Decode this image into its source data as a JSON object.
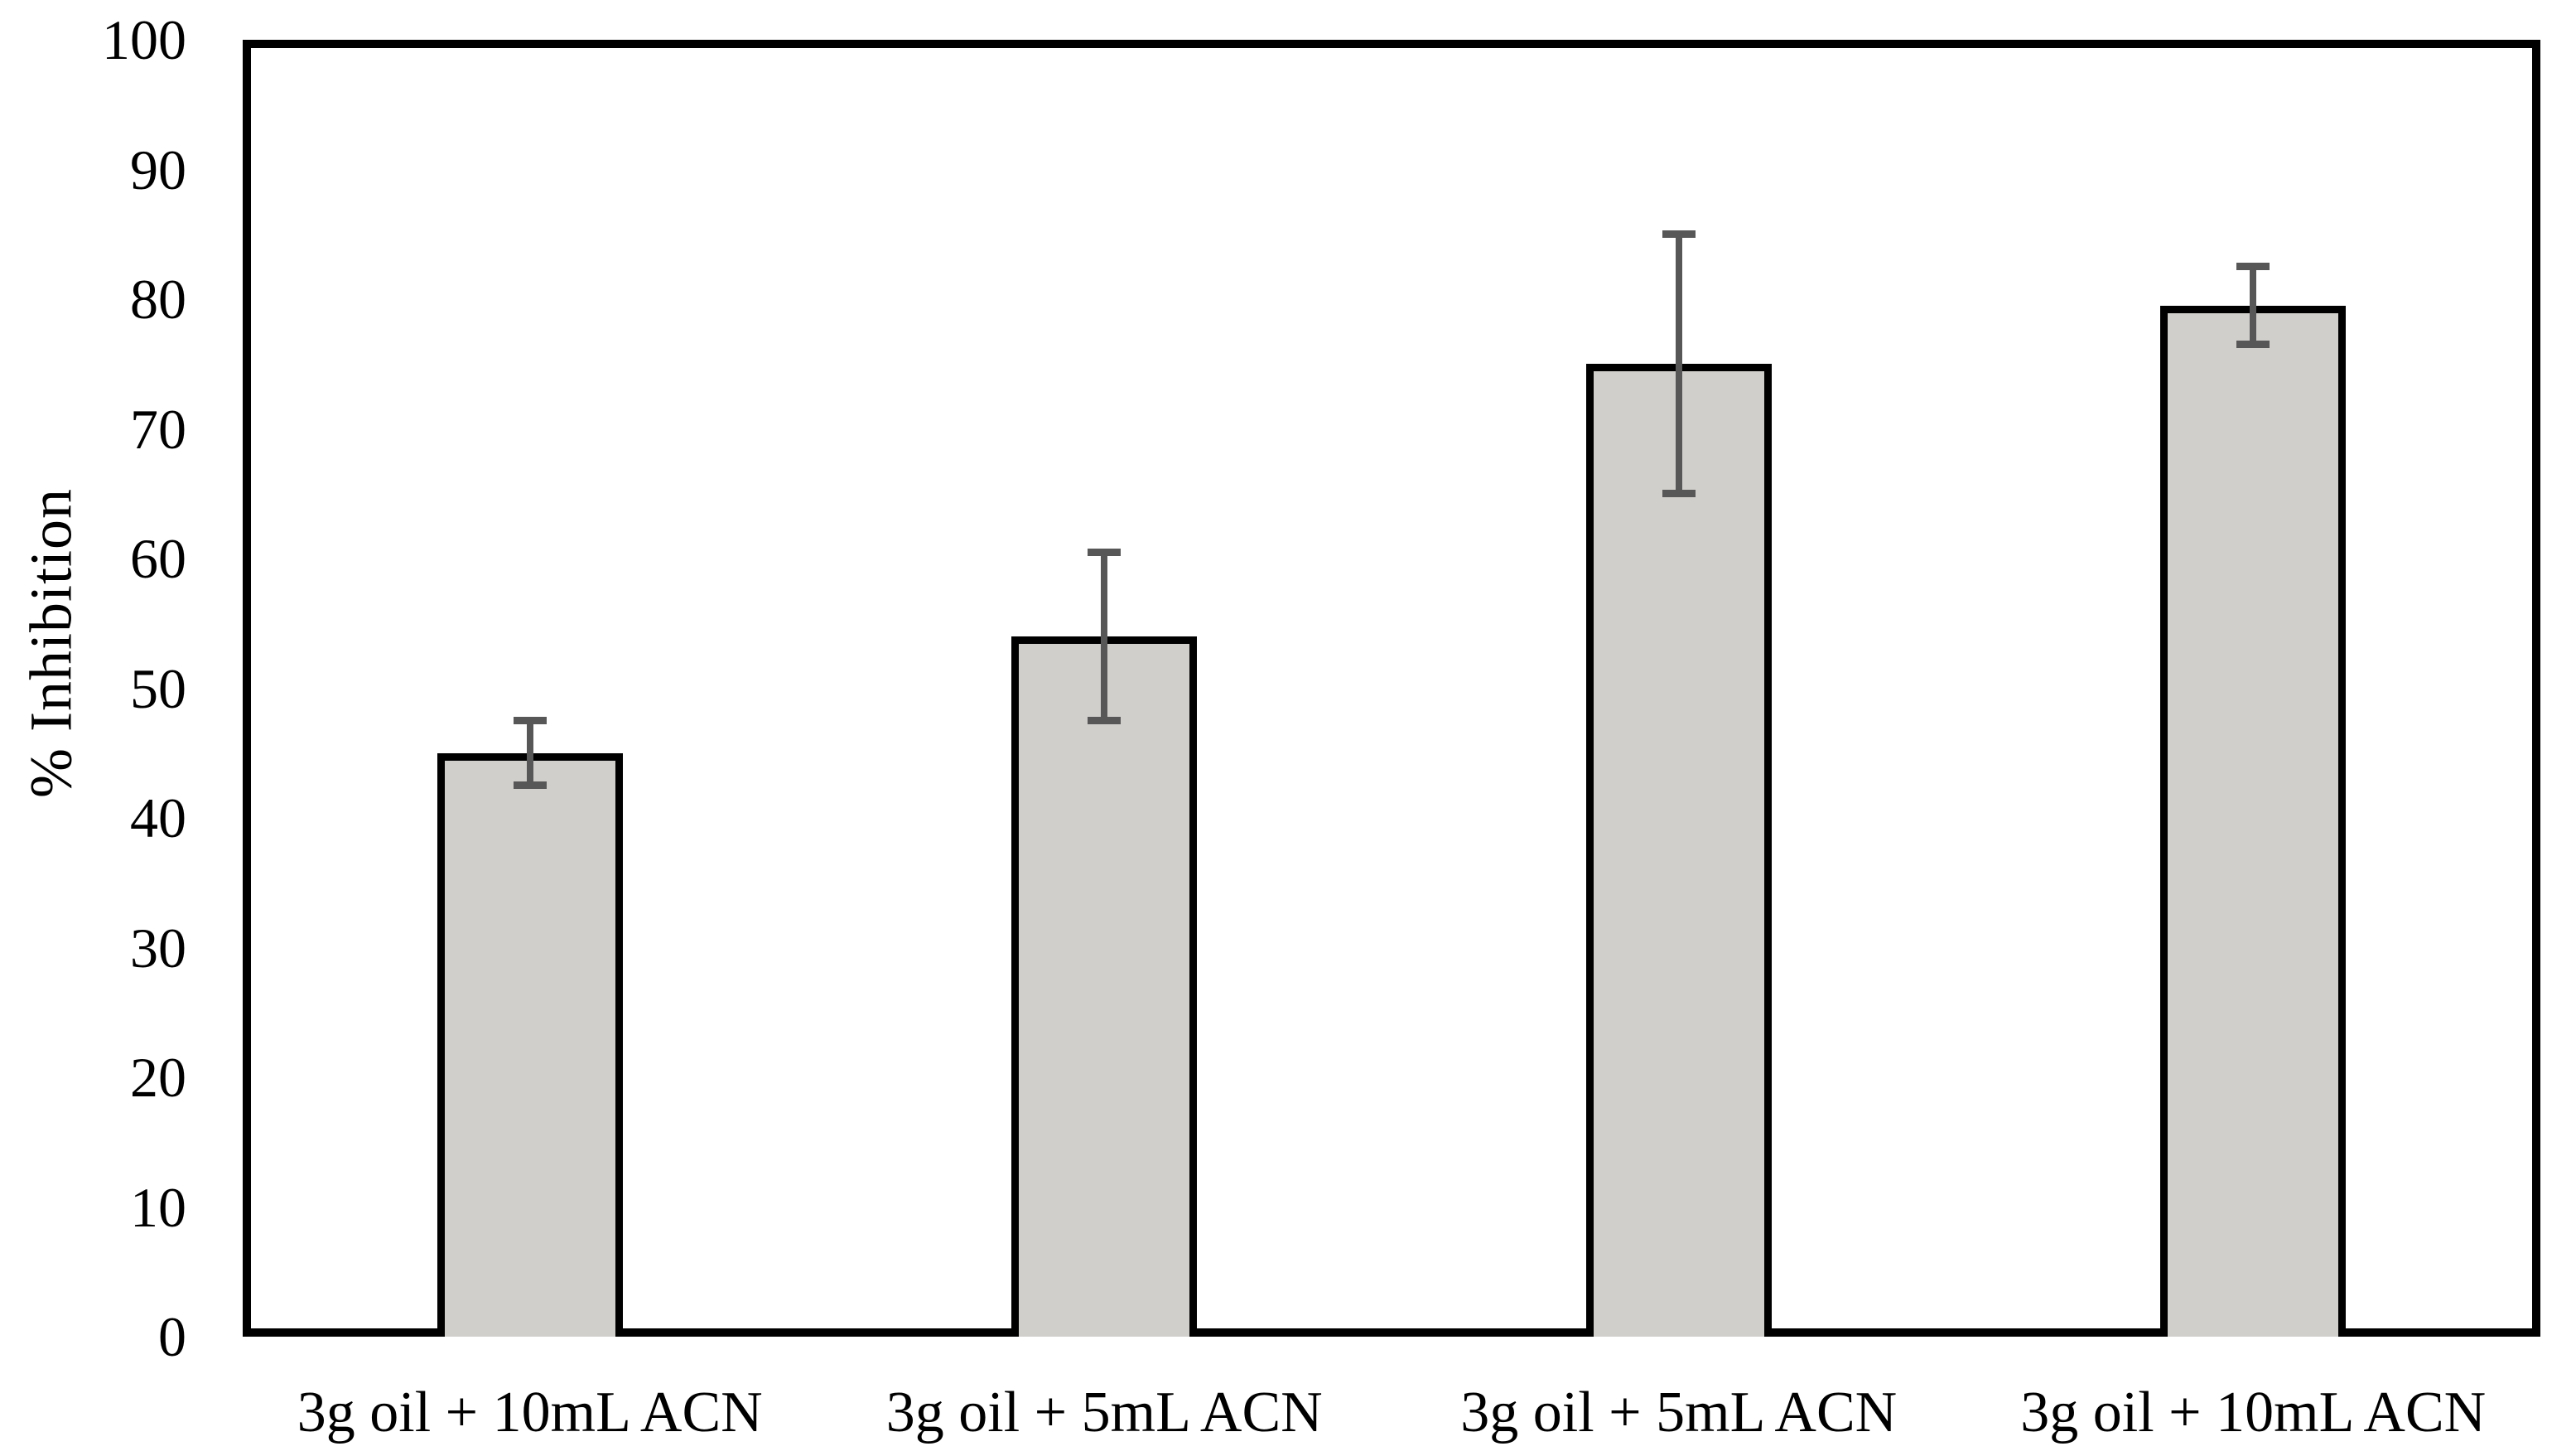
{
  "chart_data": {
    "type": "bar",
    "title": "",
    "xlabel": "",
    "ylabel": "% Inhibition",
    "categories": [
      "3g oil + 10mL ACN",
      "3g oil + 5mL ACN",
      "3g oil + 5mL ACN",
      "3g oil + 10mL ACN"
    ],
    "series": [
      {
        "name": "% Inhibition",
        "values": [
          45,
          54,
          75,
          79.5
        ],
        "error_bars_plus": [
          2.5,
          6.5,
          10,
          3
        ],
        "error_bars_minus": [
          2.5,
          6.5,
          10,
          3
        ]
      }
    ],
    "ylim": [
      0,
      100
    ],
    "yticks": [
      0,
      10,
      20,
      30,
      40,
      50,
      60,
      70,
      80,
      90,
      100
    ],
    "grid": false,
    "legend_position": "none",
    "colors": {
      "bar_fill": "#d1cfcc",
      "bar_border": "#000000",
      "error_bar": "#575757",
      "axis_frame": "#000000",
      "background": "#ffffff",
      "text": "#000000"
    }
  }
}
